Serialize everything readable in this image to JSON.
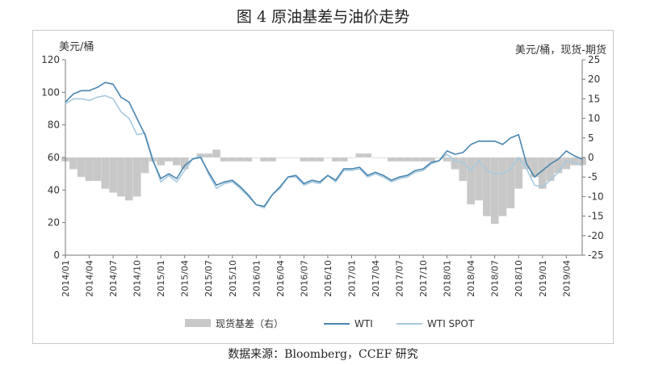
{
  "title": "图 4  原油基差与油价走势",
  "source": "数据来源：Bloomberg，CCEF 研究",
  "colors": {
    "wti": "#4a86b1",
    "wti_spot": "#a7c9df",
    "basis": "#c8c8c8",
    "axis": "#777777"
  },
  "chart_data": {
    "type": "line",
    "left_axis": {
      "label": "美元/桶",
      "range": [
        0,
        120
      ],
      "ticks": [
        "0",
        "20",
        "40",
        "60",
        "80",
        "100",
        "120"
      ]
    },
    "right_axis": {
      "label": "美元/桶，现货-期货",
      "range": [
        -25,
        25
      ],
      "ticks": [
        "-25",
        "-20",
        "-15",
        "-10",
        "-5",
        "0",
        "5",
        "10",
        "15",
        "20",
        "25"
      ]
    },
    "x_labels": [
      "2014/01",
      "2014/04",
      "2014/07",
      "2014/10",
      "2015/01",
      "2015/04",
      "2015/07",
      "2015/10",
      "2016/01",
      "2016/04",
      "2016/07",
      "2016/10",
      "2017/01",
      "2017/04",
      "2017/07",
      "2017/10",
      "2018/01",
      "2018/04",
      "2018/07",
      "2018/10",
      "2019/01",
      "2019/04"
    ],
    "series": [
      {
        "name": "WTI",
        "type": "line",
        "axis": "left",
        "x": [
          "2014/01",
          "2014/02",
          "2014/03",
          "2014/04",
          "2014/05",
          "2014/06",
          "2014/07",
          "2014/08",
          "2014/09",
          "2014/10",
          "2014/11",
          "2014/12",
          "2015/01",
          "2015/02",
          "2015/03",
          "2015/04",
          "2015/05",
          "2015/06",
          "2015/07",
          "2015/08",
          "2015/09",
          "2015/10",
          "2015/11",
          "2015/12",
          "2016/01",
          "2016/02",
          "2016/03",
          "2016/04",
          "2016/05",
          "2016/06",
          "2016/07",
          "2016/08",
          "2016/09",
          "2016/10",
          "2016/11",
          "2016/12",
          "2017/01",
          "2017/02",
          "2017/03",
          "2017/04",
          "2017/05",
          "2017/06",
          "2017/07",
          "2017/08",
          "2017/09",
          "2017/10",
          "2017/11",
          "2017/12",
          "2018/01",
          "2018/02",
          "2018/03",
          "2018/04",
          "2018/05",
          "2018/06",
          "2018/07",
          "2018/08",
          "2018/09",
          "2018/10",
          "2018/11",
          "2018/12",
          "2019/01",
          "2019/02",
          "2019/03",
          "2019/04",
          "2019/05",
          "2019/06"
        ],
        "values": [
          94,
          99,
          101,
          101,
          103,
          106,
          105,
          97,
          94,
          84,
          74,
          58,
          47,
          50,
          47,
          55,
          59,
          60,
          51,
          43,
          45,
          46,
          42,
          37,
          31,
          30,
          37,
          42,
          48,
          49,
          44,
          46,
          45,
          49,
          46,
          53,
          53,
          54,
          49,
          51,
          49,
          46,
          48,
          49,
          52,
          53,
          57,
          58,
          64,
          62,
          63,
          68,
          70,
          70,
          70,
          68,
          72,
          74,
          56,
          48,
          52,
          56,
          59,
          64,
          61,
          59
        ]
      },
      {
        "name": "WTI SPOT",
        "type": "line",
        "axis": "left",
        "x": [
          "2014/01",
          "2014/02",
          "2014/03",
          "2014/04",
          "2014/05",
          "2014/06",
          "2014/07",
          "2014/08",
          "2014/09",
          "2014/10",
          "2014/11",
          "2014/12",
          "2015/01",
          "2015/02",
          "2015/03",
          "2015/04",
          "2015/05",
          "2015/06",
          "2015/07",
          "2015/08",
          "2015/09",
          "2015/10",
          "2015/11",
          "2015/12",
          "2016/01",
          "2016/02",
          "2016/03",
          "2016/04",
          "2016/05",
          "2016/06",
          "2016/07",
          "2016/08",
          "2016/09",
          "2016/10",
          "2016/11",
          "2016/12",
          "2017/01",
          "2017/02",
          "2017/03",
          "2017/04",
          "2017/05",
          "2017/06",
          "2017/07",
          "2017/08",
          "2017/09",
          "2017/10",
          "2017/11",
          "2017/12",
          "2018/01",
          "2018/02",
          "2018/03",
          "2018/04",
          "2018/05",
          "2018/06",
          "2018/07",
          "2018/08",
          "2018/09",
          "2018/10",
          "2018/11",
          "2018/12",
          "2019/01",
          "2019/02",
          "2019/03",
          "2019/04",
          "2019/05",
          "2019/06"
        ],
        "values": [
          93,
          96,
          96,
          95,
          97,
          98,
          96,
          88,
          84,
          74,
          75,
          59,
          45,
          49,
          45,
          52,
          59,
          61,
          50,
          41,
          44,
          45,
          41,
          36,
          31,
          29,
          37,
          41,
          48,
          48,
          43,
          45,
          44,
          49,
          45,
          52,
          52,
          53,
          48,
          50,
          48,
          45,
          47,
          48,
          51,
          52,
          56,
          58,
          62,
          58,
          57,
          52,
          58,
          52,
          50,
          50,
          53,
          60,
          53,
          43,
          42,
          46,
          51,
          58,
          57,
          55
        ]
      },
      {
        "name": "现货基差（右）",
        "type": "area",
        "axis": "right",
        "x": [
          "2014/01",
          "2014/02",
          "2014/03",
          "2014/04",
          "2014/05",
          "2014/06",
          "2014/07",
          "2014/08",
          "2014/09",
          "2014/10",
          "2014/11",
          "2014/12",
          "2015/01",
          "2015/02",
          "2015/03",
          "2015/04",
          "2015/05",
          "2015/06",
          "2015/07",
          "2015/08",
          "2015/09",
          "2015/10",
          "2015/11",
          "2015/12",
          "2016/01",
          "2016/02",
          "2016/03",
          "2016/04",
          "2016/05",
          "2016/06",
          "2016/07",
          "2016/08",
          "2016/09",
          "2016/10",
          "2016/11",
          "2016/12",
          "2017/01",
          "2017/02",
          "2017/03",
          "2017/04",
          "2017/05",
          "2017/06",
          "2017/07",
          "2017/08",
          "2017/09",
          "2017/10",
          "2017/11",
          "2017/12",
          "2018/01",
          "2018/02",
          "2018/03",
          "2018/04",
          "2018/05",
          "2018/06",
          "2018/07",
          "2018/08",
          "2018/09",
          "2018/10",
          "2018/11",
          "2018/12",
          "2019/01",
          "2019/02",
          "2019/03",
          "2019/04",
          "2019/05",
          "2019/06"
        ],
        "values": [
          -1,
          -3,
          -5,
          -6,
          -6,
          -8,
          -9,
          -10,
          -11,
          -10,
          -4,
          -1,
          -2,
          -1,
          -2,
          -3,
          0,
          1,
          1,
          2,
          -1,
          -1,
          -1,
          -1,
          0,
          -1,
          -1,
          0,
          0,
          0,
          -1,
          -1,
          -1,
          0,
          -1,
          -1,
          0,
          1,
          1,
          0,
          0,
          -1,
          -1,
          -1,
          -1,
          -1,
          -1,
          0,
          -1,
          -3,
          -6,
          -12,
          -11,
          -15,
          -17,
          -15,
          -13,
          -8,
          -3,
          -5,
          -8,
          -6,
          -4,
          -3,
          -2,
          -2
        ]
      }
    ],
    "legend": {
      "position": "bottom",
      "entries": [
        "现货基差（右）",
        "WTI",
        "WTI SPOT"
      ]
    },
    "grid": false
  }
}
